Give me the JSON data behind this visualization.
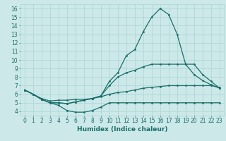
{
  "xlabel": "Humidex (Indice chaleur)",
  "bg_color": "#cce8e8",
  "line_color": "#1a6e6a",
  "grid_color": "#aad4d4",
  "xlim": [
    -0.5,
    23.5
  ],
  "ylim": [
    3.5,
    16.5
  ],
  "xticks": [
    0,
    1,
    2,
    3,
    4,
    5,
    6,
    7,
    8,
    9,
    10,
    11,
    12,
    13,
    14,
    15,
    16,
    17,
    18,
    19,
    20,
    21,
    22,
    23
  ],
  "yticks": [
    4,
    5,
    6,
    7,
    8,
    9,
    10,
    11,
    12,
    13,
    14,
    15,
    16
  ],
  "curves": [
    {
      "x": [
        0,
        1,
        2,
        3,
        4,
        5,
        6,
        7,
        8,
        9,
        10,
        11,
        12,
        13,
        14,
        15,
        16,
        17,
        18,
        19,
        20,
        21,
        22,
        23
      ],
      "y": [
        6.5,
        6.0,
        5.4,
        5.0,
        4.7,
        4.1,
        3.9,
        3.9,
        4.1,
        4.5,
        5.0,
        5.0,
        5.0,
        5.0,
        5.0,
        5.0,
        5.0,
        5.0,
        5.0,
        5.0,
        5.0,
        5.0,
        5.0,
        5.0
      ]
    },
    {
      "x": [
        0,
        1,
        2,
        3,
        4,
        5,
        6,
        7,
        8,
        9,
        10,
        11,
        12,
        13,
        14,
        15,
        16,
        17,
        18,
        19,
        20,
        21,
        22,
        23
      ],
      "y": [
        6.5,
        6.0,
        5.5,
        5.2,
        5.3,
        5.3,
        5.4,
        5.4,
        5.5,
        5.7,
        6.0,
        6.2,
        6.3,
        6.5,
        6.7,
        6.8,
        6.9,
        7.0,
        7.0,
        7.0,
        7.0,
        7.0,
        7.0,
        6.8
      ]
    },
    {
      "x": [
        0,
        1,
        2,
        3,
        4,
        5,
        6,
        7,
        8,
        9,
        10,
        11,
        12,
        13,
        14,
        15,
        16,
        17,
        18,
        19,
        20,
        21,
        22,
        23
      ],
      "y": [
        6.5,
        6.0,
        5.4,
        5.0,
        5.0,
        4.9,
        5.1,
        5.3,
        5.5,
        5.8,
        7.5,
        8.5,
        10.5,
        11.2,
        13.3,
        15.0,
        16.0,
        15.3,
        13.0,
        9.5,
        8.3,
        7.6,
        7.1,
        6.7
      ]
    },
    {
      "x": [
        0,
        1,
        2,
        3,
        4,
        5,
        6,
        7,
        8,
        9,
        10,
        11,
        12,
        13,
        14,
        15,
        16,
        17,
        18,
        19,
        20,
        21,
        22,
        23
      ],
      "y": [
        6.5,
        6.0,
        5.4,
        5.0,
        5.0,
        4.9,
        5.1,
        5.3,
        5.5,
        5.8,
        7.0,
        8.0,
        8.5,
        8.8,
        9.2,
        9.5,
        9.5,
        9.5,
        9.5,
        9.5,
        9.5,
        8.3,
        7.5,
        6.7
      ]
    }
  ],
  "label_fontsize": 6.5,
  "tick_fontsize": 5.5,
  "marker_size": 2.0,
  "line_width": 0.9
}
